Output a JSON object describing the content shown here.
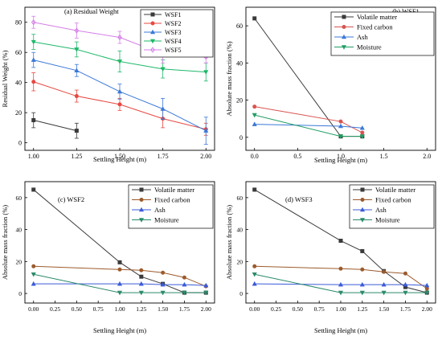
{
  "chart_data": [
    {
      "type": "line",
      "title": "(a) Residual Weight",
      "xlabel": "Settling Height (m)",
      "ylabel": "Residual Weight (%)",
      "xlim": [
        0.95,
        2.05
      ],
      "ylim": [
        -5,
        90
      ],
      "xticks": [
        1.0,
        1.25,
        1.5,
        1.75,
        2.0
      ],
      "xtick_labels": [
        "1.00",
        "1.25",
        "1.50",
        "1.75",
        "2.00"
      ],
      "yticks": [
        0,
        20,
        40,
        60,
        80
      ],
      "legend": "top-right",
      "series": [
        {
          "name": "WSF1",
          "color": "#3a3a3a",
          "marker": "square",
          "x": [
            1.0,
            1.25
          ],
          "y": [
            15,
            8
          ],
          "err": [
            5,
            5
          ]
        },
        {
          "name": "WSF2",
          "color": "#e8473f",
          "marker": "circle",
          "x": [
            1.0,
            1.25,
            1.5,
            1.75,
            2.0
          ],
          "y": [
            40.5,
            31,
            25.5,
            16,
            9
          ],
          "err": [
            6,
            4,
            4,
            6,
            4
          ]
        },
        {
          "name": "WSF3",
          "color": "#3b78d8",
          "marker": "triangle-up",
          "x": [
            1.0,
            1.25,
            1.5,
            1.75,
            2.0
          ],
          "y": [
            55,
            48,
            34,
            22.5,
            8
          ],
          "err": [
            5,
            4,
            5,
            7,
            9
          ]
        },
        {
          "name": "WSF4",
          "color": "#1fb86a",
          "marker": "triangle-down",
          "x": [
            1.0,
            1.25,
            1.5,
            1.75,
            2.0
          ],
          "y": [
            67,
            62,
            54,
            49,
            47
          ],
          "err": [
            5,
            5,
            7,
            6,
            6
          ]
        },
        {
          "name": "WSF5",
          "color": "#d57ee8",
          "marker": "diamond",
          "x": [
            1.0,
            1.25,
            1.5,
            1.75,
            2.0
          ],
          "y": [
            80,
            74.5,
            70,
            59,
            57
          ],
          "err": [
            4,
            5,
            4,
            6,
            4
          ]
        }
      ]
    },
    {
      "type": "line",
      "title": "(b) WSF1",
      "xlabel": "Settling Height (m)",
      "ylabel": "Absolute mass fraction (%)",
      "xlim": [
        -0.1,
        2.1
      ],
      "ylim": [
        -7,
        70
      ],
      "xticks": [
        0.0,
        0.5,
        1.0,
        1.5,
        2.0
      ],
      "xtick_labels": [
        "0.0",
        "0.5",
        "1.0",
        "1.5",
        "2.0"
      ],
      "yticks": [
        0,
        20,
        40,
        60
      ],
      "legend": "top-right",
      "series": [
        {
          "name": "Volatile matter",
          "color": "#3a3a3a",
          "marker": "square",
          "x": [
            0.0,
            1.0,
            1.25
          ],
          "y": [
            64,
            0.5,
            0.5
          ]
        },
        {
          "name": "Fixed carbon",
          "color": "#d9534f",
          "marker": "circle",
          "x": [
            0.0,
            1.0,
            1.25
          ],
          "y": [
            16.5,
            8.5,
            2.5
          ]
        },
        {
          "name": "Ash",
          "color": "#3b78d8",
          "marker": "triangle-up",
          "x": [
            0.0,
            1.0,
            1.25
          ],
          "y": [
            7,
            6,
            5
          ]
        },
        {
          "name": "Moisture",
          "color": "#1f9e63",
          "marker": "triangle-down",
          "x": [
            0.0,
            1.0,
            1.25
          ],
          "y": [
            12,
            0.5,
            0.5
          ]
        }
      ]
    },
    {
      "type": "line",
      "title": "(c) WSF2",
      "xlabel": "Settling Height (m)",
      "ylabel": "Absolute mass fraction (%)",
      "xlim": [
        -0.1,
        2.1
      ],
      "ylim": [
        -6,
        70
      ],
      "xticks": [
        0,
        0.25,
        0.5,
        0.75,
        1.0,
        1.25,
        1.5,
        1.75,
        2.0
      ],
      "xtick_labels": [
        "0.00",
        "0.25",
        "0.50",
        "0.75",
        "1.00",
        "1.25",
        "1.50",
        "1.75",
        "2.00"
      ],
      "yticks": [
        0,
        20,
        40,
        60
      ],
      "legend": "top-right",
      "series": [
        {
          "name": "Volatile matter",
          "color": "#3a3a3a",
          "marker": "square",
          "x": [
            0.0,
            1.0,
            1.25,
            1.5,
            1.75,
            2.0
          ],
          "y": [
            65,
            19.5,
            10.5,
            6,
            0.5,
            0.5
          ]
        },
        {
          "name": "Fixed carbon",
          "color": "#9c5a2c",
          "marker": "circle",
          "x": [
            0.0,
            1.0,
            1.25,
            1.5,
            1.75,
            2.0
          ],
          "y": [
            17,
            15,
            14.5,
            13,
            10,
            4.5
          ]
        },
        {
          "name": "Ash",
          "color": "#3b5bd8",
          "marker": "triangle-up",
          "x": [
            0.0,
            1.0,
            1.25,
            1.5,
            1.75,
            2.0
          ],
          "y": [
            6,
            6,
            6,
            5.5,
            5.5,
            5
          ]
        },
        {
          "name": "Moisture",
          "color": "#2a8a6a",
          "marker": "triangle-down",
          "x": [
            0.0,
            1.0,
            1.25,
            1.5,
            1.75,
            2.0
          ],
          "y": [
            12,
            0.5,
            0.5,
            0.5,
            0.5,
            0.5
          ]
        }
      ]
    },
    {
      "type": "line",
      "title": "(d) WSF3",
      "xlabel": "Settling Height (m)",
      "ylabel": "Absolute mass fraction (%)",
      "xlim": [
        -0.1,
        2.1
      ],
      "ylim": [
        -6,
        70
      ],
      "xticks": [
        0,
        0.25,
        0.5,
        0.75,
        1.0,
        1.25,
        1.5,
        1.75,
        2.0
      ],
      "xtick_labels": [
        "0.00",
        "0.25",
        "0.50",
        "0.75",
        "1.00",
        "1.25",
        "1.50",
        "1.75",
        "2.00"
      ],
      "yticks": [
        0,
        20,
        40,
        60
      ],
      "legend": "top-right",
      "series": [
        {
          "name": "Volatile matter",
          "color": "#3a3a3a",
          "marker": "square",
          "x": [
            0.0,
            1.0,
            1.25,
            1.5,
            1.75,
            2.0
          ],
          "y": [
            65,
            33,
            26.5,
            14,
            4,
            0.5
          ]
        },
        {
          "name": "Fixed carbon",
          "color": "#9c5a2c",
          "marker": "circle",
          "x": [
            0.0,
            1.0,
            1.25,
            1.5,
            1.75,
            2.0
          ],
          "y": [
            17,
            15.5,
            15,
            13.5,
            12.5,
            3
          ]
        },
        {
          "name": "Ash",
          "color": "#3b5bd8",
          "marker": "triangle-up",
          "x": [
            0.0,
            1.0,
            1.25,
            1.5,
            1.75,
            2.0
          ],
          "y": [
            6,
            5.5,
            5.5,
            5.5,
            5.5,
            5
          ]
        },
        {
          "name": "Moisture",
          "color": "#2a8a6a",
          "marker": "triangle-down",
          "x": [
            0.0,
            1.0,
            1.25,
            1.5,
            1.75,
            2.0
          ],
          "y": [
            12,
            0.5,
            0.5,
            0.5,
            0.5,
            0.5
          ]
        }
      ]
    }
  ]
}
